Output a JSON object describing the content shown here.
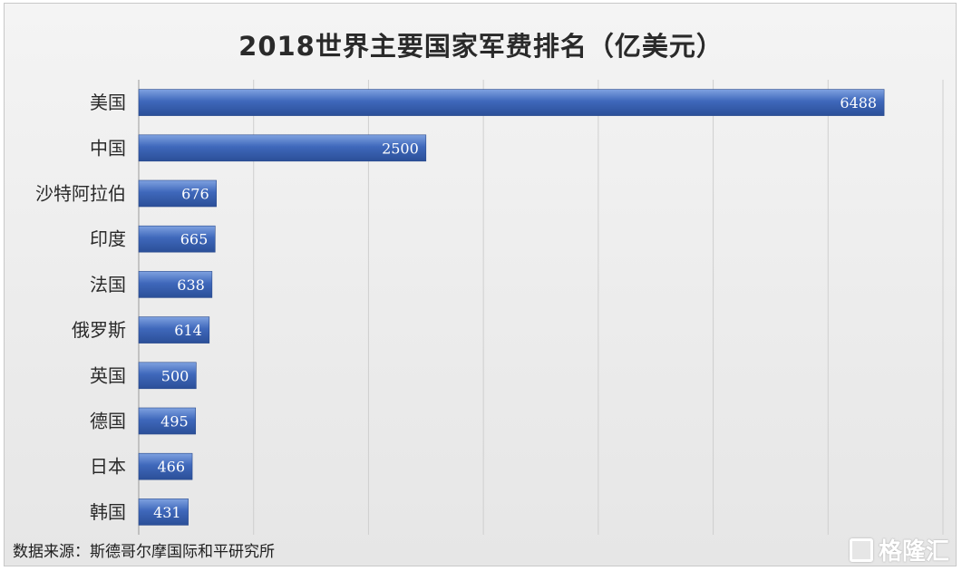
{
  "chart_data": {
    "type": "bar",
    "orientation": "horizontal",
    "title": "2018世界主要国家军费排名（亿美元）",
    "categories": [
      "美国",
      "中国",
      "沙特阿拉伯",
      "印度",
      "法国",
      "俄罗斯",
      "英国",
      "德国",
      "日本",
      "韩国"
    ],
    "values": [
      6488,
      2500,
      676,
      665,
      638,
      614,
      500,
      495,
      466,
      431
    ],
    "xlim": [
      0,
      7000
    ],
    "x_gridlines": [
      1000,
      2000,
      3000,
      4000,
      5000,
      6000,
      7000
    ],
    "grid": true,
    "data_labels": "inside-end",
    "legend": "none",
    "bar_color": "#3a63b5",
    "bar_color_light": "#6f94d8"
  },
  "footer": {
    "source": "数据来源：斯德哥尔摩国际和平研究所",
    "watermark": "格隆汇"
  }
}
